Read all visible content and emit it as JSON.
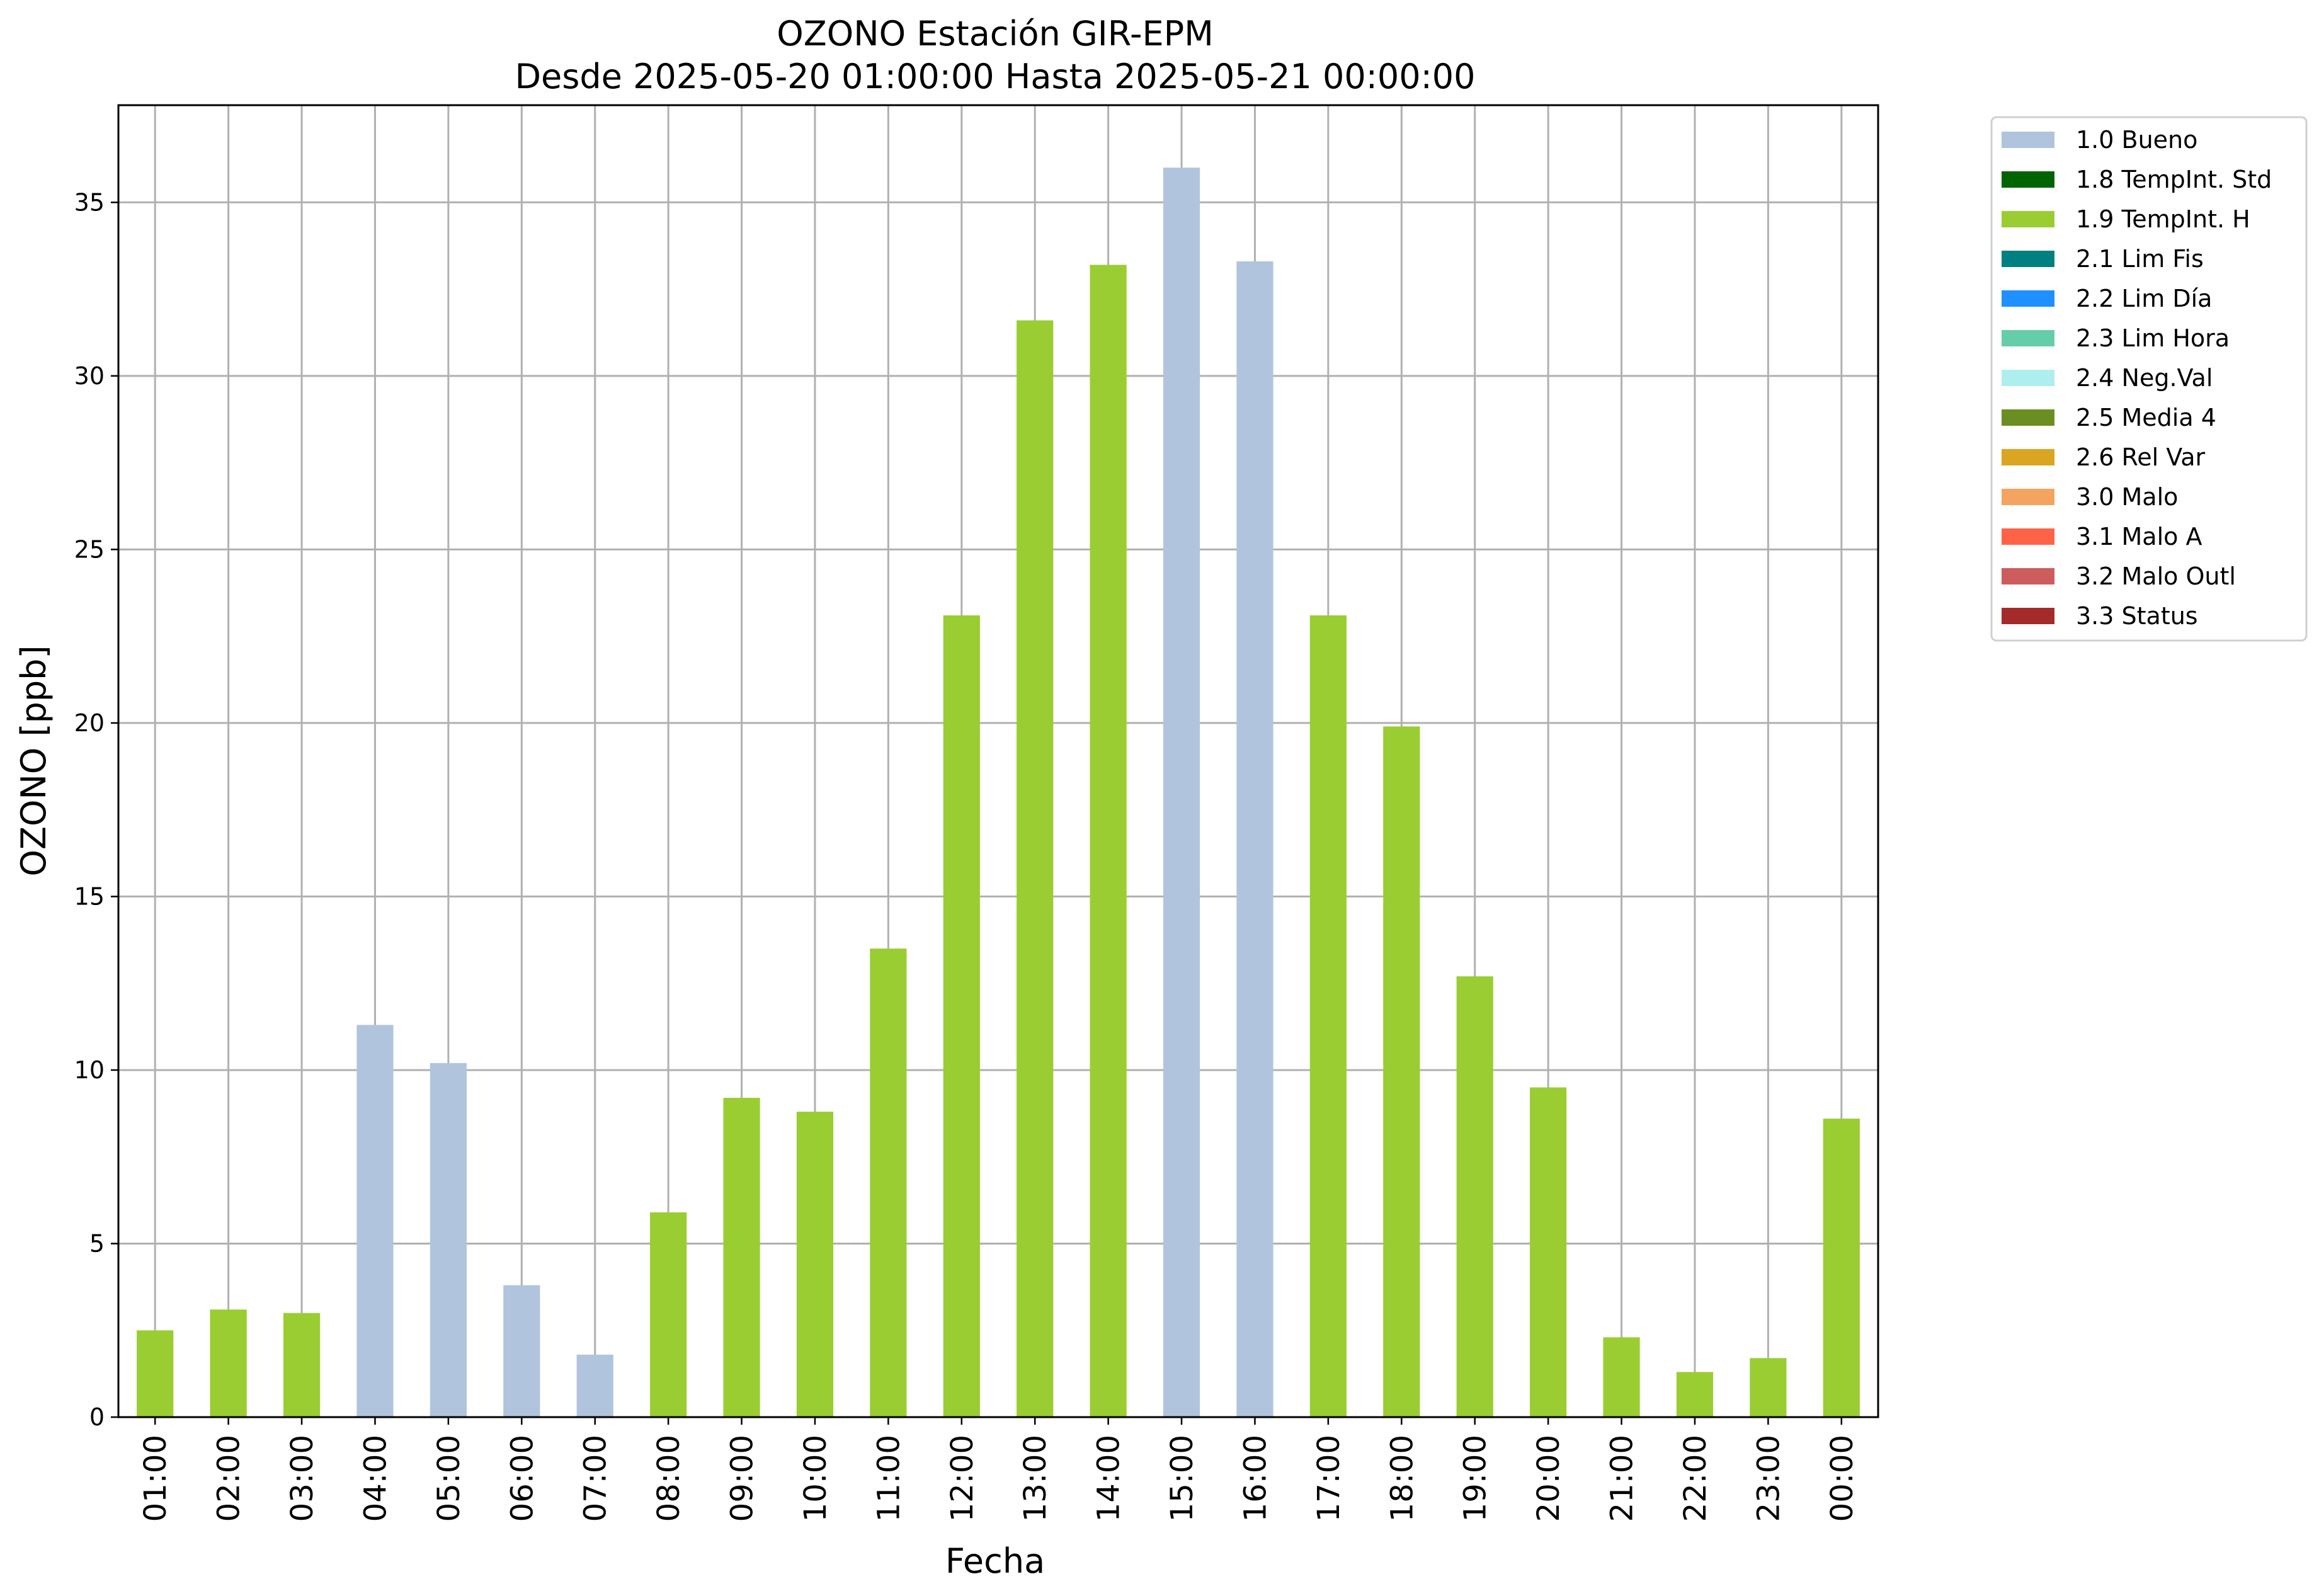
{
  "chart_data": {
    "type": "bar",
    "title": "OZONO Estación GIR-EPM",
    "subtitle": "Desde 2025-05-20 01:00:00 Hasta 2025-05-21 00:00:00",
    "xlabel": "Fecha",
    "ylabel": "OZONO [ppb]",
    "ylim": [
      0,
      37.8
    ],
    "yticks": [
      0,
      5,
      10,
      15,
      20,
      25,
      30,
      35
    ],
    "grid": true,
    "legend_position": "outside-top-right",
    "categories": [
      "01:00",
      "02:00",
      "03:00",
      "04:00",
      "05:00",
      "06:00",
      "07:00",
      "08:00",
      "09:00",
      "10:00",
      "11:00",
      "12:00",
      "13:00",
      "14:00",
      "15:00",
      "16:00",
      "17:00",
      "18:00",
      "19:00",
      "20:00",
      "21:00",
      "22:00",
      "23:00",
      "00:00"
    ],
    "values": [
      2.5,
      3.1,
      3.0,
      11.3,
      10.2,
      3.8,
      1.8,
      5.9,
      9.2,
      8.8,
      13.5,
      23.1,
      31.6,
      33.2,
      36.0,
      33.3,
      23.1,
      19.9,
      12.7,
      9.5,
      2.3,
      1.3,
      1.7,
      8.6
    ],
    "flags": [
      "1.9 TempInt. H",
      "1.9 TempInt. H",
      "1.9 TempInt. H",
      "1.0 Bueno",
      "1.0 Bueno",
      "1.0 Bueno",
      "1.0 Bueno",
      "1.9 TempInt. H",
      "1.9 TempInt. H",
      "1.9 TempInt. H",
      "1.9 TempInt. H",
      "1.9 TempInt. H",
      "1.9 TempInt. H",
      "1.9 TempInt. H",
      "1.0 Bueno",
      "1.0 Bueno",
      "1.9 TempInt. H",
      "1.9 TempInt. H",
      "1.9 TempInt. H",
      "1.9 TempInt. H",
      "1.9 TempInt. H",
      "1.9 TempInt. H",
      "1.9 TempInt. H",
      "1.9 TempInt. H"
    ],
    "legend": [
      {
        "name": "1.0 Bueno",
        "color": "#b0c4de"
      },
      {
        "name": "1.8 TempInt. Std",
        "color": "#006400"
      },
      {
        "name": "1.9 TempInt. H",
        "color": "#9acd32"
      },
      {
        "name": "2.1 Lim Fis",
        "color": "#008080"
      },
      {
        "name": "2.2 Lim Día",
        "color": "#1e90ff"
      },
      {
        "name": "2.3 Lim Hora",
        "color": "#66cdaa"
      },
      {
        "name": "2.4 Neg.Val",
        "color": "#afeeee"
      },
      {
        "name": "2.5 Media 4",
        "color": "#6b8e23"
      },
      {
        "name": "2.6 Rel Var",
        "color": "#daa520"
      },
      {
        "name": "3.0 Malo",
        "color": "#f4a460"
      },
      {
        "name": "3.1 Malo A",
        "color": "#ff6347"
      },
      {
        "name": "3.2 Malo Outl",
        "color": "#cd5c5c"
      },
      {
        "name": "3.3 Status",
        "color": "#a52a2a"
      }
    ]
  }
}
